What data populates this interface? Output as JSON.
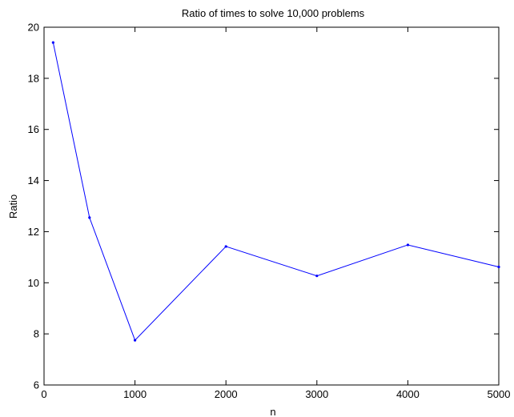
{
  "chart_data": {
    "type": "line",
    "title": "Ratio of times to solve 10,000 problems",
    "xlabel": "n",
    "ylabel": "Ratio",
    "x": [
      100,
      500,
      1000,
      2000,
      3000,
      4000,
      5000
    ],
    "series": [
      {
        "values": [
          19.4,
          12.55,
          7.75,
          11.42,
          10.27,
          11.48,
          10.62
        ]
      }
    ],
    "xlim": [
      0,
      5000
    ],
    "ylim": [
      6,
      20
    ],
    "xticks": [
      0,
      1000,
      2000,
      3000,
      4000,
      5000
    ],
    "xtick_labels": [
      "0",
      "1000",
      "2000",
      "3000",
      "4000",
      "5000"
    ],
    "yticks": [
      6,
      8,
      10,
      12,
      14,
      16,
      18,
      20
    ],
    "ytick_labels": [
      "6",
      "8",
      "10",
      "12",
      "14",
      "16",
      "18",
      "20"
    ],
    "grid": false,
    "line_color": "#0000ff",
    "marker": "dot"
  }
}
